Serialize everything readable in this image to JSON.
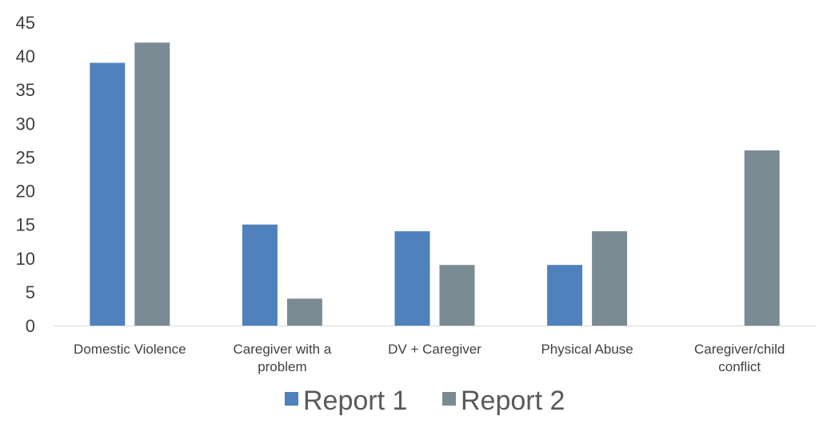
{
  "chart_data": {
    "type": "bar",
    "title": "",
    "xlabel": "",
    "ylabel": "",
    "ylim": [
      0,
      45
    ],
    "yticks": [
      0,
      5,
      10,
      15,
      20,
      25,
      30,
      35,
      40,
      45
    ],
    "grid": false,
    "legend_position": "bottom",
    "categories": [
      [
        "Domestic Violence"
      ],
      [
        "Caregiver with a",
        "problem"
      ],
      [
        "DV + Caregiver"
      ],
      [
        "Physical Abuse"
      ],
      [
        "Caregiver/child",
        "conflict"
      ]
    ],
    "series": [
      {
        "name": "Report 1",
        "color": "#4f81bd",
        "values": [
          39,
          15,
          14,
          9,
          null
        ]
      },
      {
        "name": "Report 2",
        "color": "#7b8b93",
        "values": [
          42,
          4,
          9,
          14,
          26
        ]
      }
    ]
  }
}
